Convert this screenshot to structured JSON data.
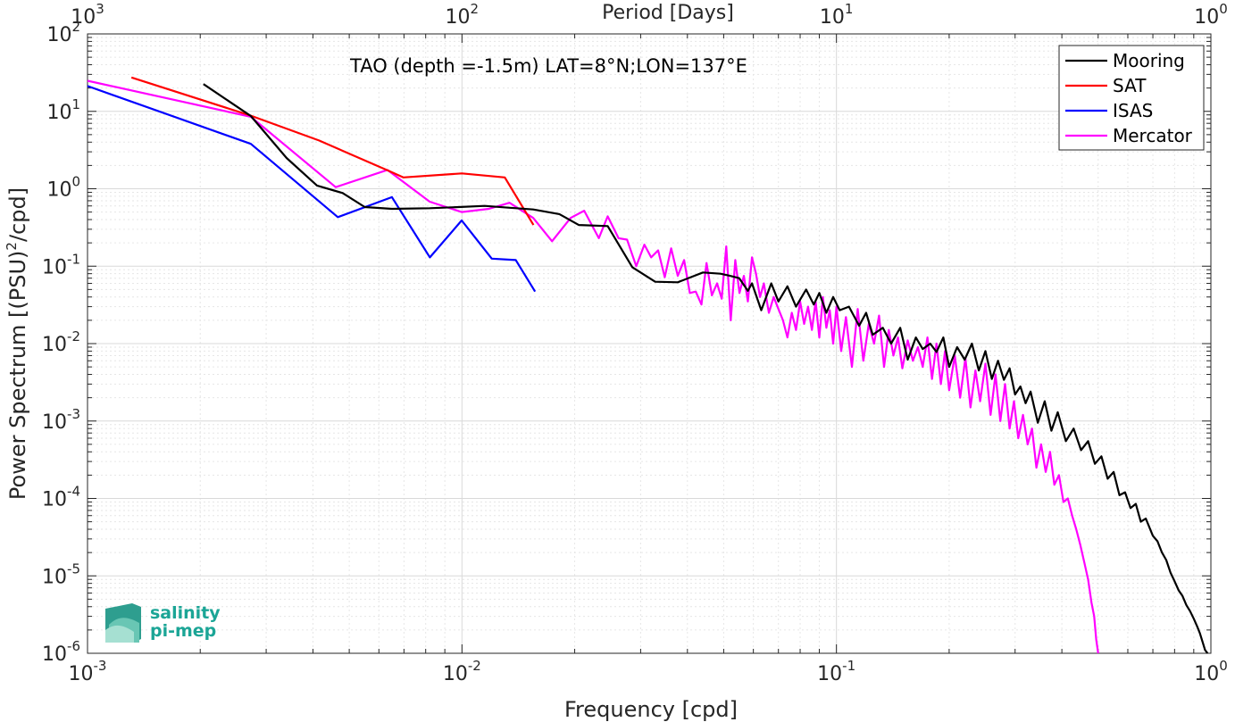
{
  "chart_data": {
    "type": "line",
    "title": "",
    "annotation": "TAO (depth =-1.5m) LAT=8°N;LON=137°E",
    "xlabel": "Frequency [cpd]",
    "ylabel": "Power Spectrum [(PSU)",
    "ylabel_sup": "2",
    "ylabel_suffix": "/cpd]",
    "top_xlabel": "Period [Days]",
    "xscale": "log",
    "yscale": "log",
    "xlim": [
      0.001,
      1
    ],
    "ylim": [
      1e-06,
      100
    ],
    "grid": true,
    "minor_grid": true,
    "legend_position": "top-right",
    "x_ticks": [
      {
        "base": "10",
        "exp": "-3",
        "value": 0.001
      },
      {
        "base": "10",
        "exp": "-2",
        "value": 0.01
      },
      {
        "base": "10",
        "exp": "-1",
        "value": 0.1
      },
      {
        "base": "10",
        "exp": "0",
        "value": 1
      }
    ],
    "y_ticks": [
      {
        "base": "10",
        "exp": "2",
        "value": 100
      },
      {
        "base": "10",
        "exp": "1",
        "value": 10
      },
      {
        "base": "10",
        "exp": "0",
        "value": 1
      },
      {
        "base": "10",
        "exp": "-1",
        "value": 0.1
      },
      {
        "base": "10",
        "exp": "-2",
        "value": 0.01
      },
      {
        "base": "10",
        "exp": "-3",
        "value": 0.001
      },
      {
        "base": "10",
        "exp": "-4",
        "value": 0.0001
      },
      {
        "base": "10",
        "exp": "-5",
        "value": 1e-05
      },
      {
        "base": "10",
        "exp": "-6",
        "value": 1e-06
      }
    ],
    "top_ticks": [
      {
        "base": "10",
        "exp": "3",
        "value": 0.001
      },
      {
        "base": "10",
        "exp": "2",
        "value": 0.01
      },
      {
        "base": "10",
        "exp": "1",
        "value": 0.1
      },
      {
        "base": "10",
        "exp": "0",
        "value": 1
      }
    ],
    "series": [
      {
        "name": "Mooring",
        "color": "#000000",
        "x": [
          0.00204,
          0.00273,
          0.0034,
          0.0041,
          0.0048,
          0.0055,
          0.0065,
          0.0082,
          0.0098,
          0.0115,
          0.0133,
          0.0155,
          0.0182,
          0.0205,
          0.0245,
          0.0285,
          0.0328,
          0.0377,
          0.044,
          0.049,
          0.052,
          0.055,
          0.058,
          0.0595,
          0.063,
          0.067,
          0.07,
          0.074,
          0.078,
          0.083,
          0.087,
          0.09,
          0.094,
          0.098,
          0.102,
          0.108,
          0.115,
          0.12,
          0.125,
          0.133,
          0.14,
          0.148,
          0.155,
          0.163,
          0.17,
          0.178,
          0.185,
          0.193,
          0.2,
          0.21,
          0.22,
          0.23,
          0.24,
          0.25,
          0.26,
          0.27,
          0.28,
          0.29,
          0.3,
          0.31,
          0.32,
          0.33,
          0.345,
          0.36,
          0.375,
          0.39,
          0.41,
          0.43,
          0.45,
          0.47,
          0.49,
          0.51,
          0.53,
          0.55,
          0.57,
          0.59,
          0.61,
          0.63,
          0.65,
          0.67,
          0.7,
          0.72,
          0.74,
          0.76,
          0.78,
          0.8,
          0.82,
          0.84,
          0.86,
          0.88,
          0.9,
          0.92,
          0.935,
          0.95,
          0.965,
          0.98
        ],
        "y": [
          22.5,
          8.7,
          2.5,
          1.1,
          0.88,
          0.58,
          0.55,
          0.56,
          0.58,
          0.6,
          0.57,
          0.54,
          0.47,
          0.34,
          0.33,
          0.097,
          0.063,
          0.062,
          0.083,
          0.08,
          0.075,
          0.07,
          0.048,
          0.06,
          0.027,
          0.06,
          0.035,
          0.055,
          0.03,
          0.05,
          0.032,
          0.045,
          0.025,
          0.04,
          0.027,
          0.03,
          0.017,
          0.025,
          0.013,
          0.016,
          0.01,
          0.016,
          0.0062,
          0.012,
          0.0085,
          0.01,
          0.0078,
          0.012,
          0.005,
          0.009,
          0.0062,
          0.01,
          0.0045,
          0.008,
          0.0035,
          0.006,
          0.0034,
          0.0048,
          0.0022,
          0.0028,
          0.0017,
          0.0024,
          0.00095,
          0.0018,
          0.00075,
          0.0013,
          0.00055,
          0.0008,
          0.00042,
          0.00055,
          0.00028,
          0.00035,
          0.00018,
          0.00022,
          0.00011,
          0.00012,
          7.5e-05,
          8.5e-05,
          5e-05,
          5.5e-05,
          3.3e-05,
          2.8e-05,
          2e-05,
          1.6e-05,
          1.1e-05,
          8.5e-06,
          6.5e-06,
          5.5e-06,
          4.2e-06,
          3.5e-06,
          2.8e-06,
          2.2e-06,
          1.8e-06,
          1.4e-06,
          1.1e-06,
          1e-06
        ]
      },
      {
        "name": "SAT",
        "color": "#ff0000",
        "x": [
          0.00131,
          0.00273,
          0.00415,
          0.00638,
          0.00697,
          0.01,
          0.01301,
          0.01552
        ],
        "y": [
          27.4,
          8.8,
          4.2,
          1.7,
          1.4,
          1.58,
          1.4,
          0.34
        ]
      },
      {
        "name": "ISAS",
        "color": "#0000ff",
        "x": [
          0.001,
          0.00273,
          0.00466,
          0.0065,
          0.00821,
          0.00998,
          0.01201,
          0.01392,
          0.01568
        ],
        "y": [
          21.2,
          3.8,
          0.43,
          0.78,
          0.13,
          0.39,
          0.125,
          0.12,
          0.047
        ]
      },
      {
        "name": "Mercator",
        "color": "#ff00ff",
        "x": [
          0.001,
          0.00273,
          0.0046,
          0.00632,
          0.0082,
          0.00998,
          0.0118,
          0.0134,
          0.0155,
          0.0174,
          0.0195,
          0.0212,
          0.0232,
          0.0245,
          0.0262,
          0.0276,
          0.0292,
          0.0307,
          0.032,
          0.0334,
          0.0348,
          0.0362,
          0.0377,
          0.0392,
          0.0406,
          0.0421,
          0.0436,
          0.045,
          0.0465,
          0.048,
          0.0494,
          0.0508,
          0.0522,
          0.0537,
          0.0551,
          0.0566,
          0.058,
          0.0595,
          0.061,
          0.0625,
          0.064,
          0.066,
          0.068,
          0.07,
          0.072,
          0.074,
          0.076,
          0.078,
          0.08,
          0.082,
          0.084,
          0.086,
          0.088,
          0.09,
          0.092,
          0.094,
          0.096,
          0.098,
          0.1,
          0.103,
          0.106,
          0.11,
          0.114,
          0.118,
          0.122,
          0.126,
          0.13,
          0.134,
          0.138,
          0.142,
          0.146,
          0.15,
          0.155,
          0.16,
          0.165,
          0.17,
          0.175,
          0.18,
          0.185,
          0.19,
          0.195,
          0.2,
          0.207,
          0.214,
          0.221,
          0.228,
          0.235,
          0.242,
          0.25,
          0.258,
          0.266,
          0.274,
          0.282,
          0.29,
          0.298,
          0.306,
          0.315,
          0.324,
          0.333,
          0.342,
          0.352,
          0.362,
          0.372,
          0.382,
          0.393,
          0.404,
          0.415,
          0.426,
          0.437,
          0.448,
          0.459,
          0.47,
          0.48,
          0.488,
          0.494,
          0.5
        ],
        "y": [
          24.8,
          8.5,
          1.05,
          1.75,
          0.68,
          0.5,
          0.55,
          0.66,
          0.42,
          0.21,
          0.42,
          0.52,
          0.23,
          0.44,
          0.23,
          0.22,
          0.1,
          0.19,
          0.13,
          0.16,
          0.072,
          0.17,
          0.075,
          0.12,
          0.045,
          0.047,
          0.032,
          0.11,
          0.042,
          0.06,
          0.038,
          0.18,
          0.02,
          0.12,
          0.045,
          0.075,
          0.035,
          0.13,
          0.08,
          0.04,
          0.06,
          0.025,
          0.04,
          0.028,
          0.02,
          0.012,
          0.025,
          0.015,
          0.035,
          0.018,
          0.03,
          0.015,
          0.035,
          0.012,
          0.04,
          0.016,
          0.027,
          0.01,
          0.03,
          0.008,
          0.022,
          0.005,
          0.028,
          0.006,
          0.018,
          0.01,
          0.023,
          0.005,
          0.015,
          0.007,
          0.012,
          0.0048,
          0.011,
          0.006,
          0.009,
          0.005,
          0.012,
          0.0035,
          0.01,
          0.003,
          0.008,
          0.0025,
          0.007,
          0.002,
          0.0065,
          0.0015,
          0.0045,
          0.0018,
          0.0055,
          0.0012,
          0.004,
          0.001,
          0.003,
          0.0008,
          0.0018,
          0.0006,
          0.0012,
          0.0005,
          0.0008,
          0.00025,
          0.0005,
          0.00022,
          0.0004,
          0.00015,
          0.0002,
          9e-05,
          0.0001,
          6e-05,
          4e-05,
          2.5e-05,
          1.5e-05,
          9e-06,
          4.5e-06,
          3e-06,
          1.5e-06,
          1e-06
        ]
      }
    ]
  },
  "legend": [
    {
      "label": "Mooring",
      "color": "#000000"
    },
    {
      "label": "SAT",
      "color": "#ff0000"
    },
    {
      "label": "ISAS",
      "color": "#0000ff"
    },
    {
      "label": "Mercator",
      "color": "#ff00ff"
    }
  ],
  "logo": {
    "line1": "salinity",
    "line2": "pi-mep"
  }
}
